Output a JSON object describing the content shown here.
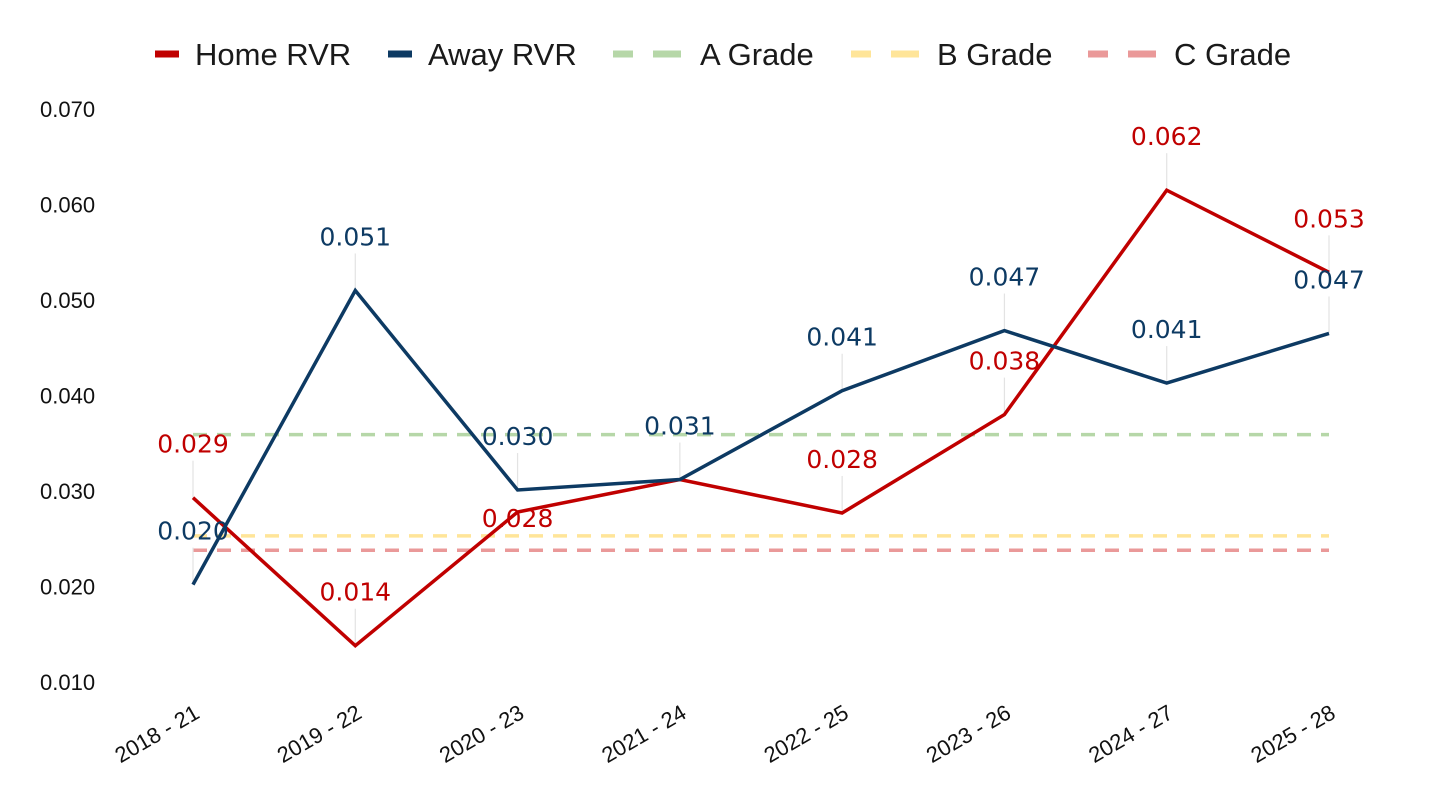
{
  "chart_data": {
    "type": "line",
    "title": "",
    "xlabel": "",
    "ylabel": "",
    "categories": [
      "2018 - 21",
      "2019 - 22",
      "2020 - 23",
      "2021 - 24",
      "2022 - 25",
      "2023 - 26",
      "2024 - 27",
      "2025 - 28"
    ],
    "ylim": [
      0.01,
      0.07
    ],
    "yticks": [
      "0.010",
      "0.020",
      "0.030",
      "0.040",
      "0.050",
      "0.060",
      "0.070"
    ],
    "grid": false,
    "legend_position": "top",
    "series": [
      {
        "name": "Home RVR",
        "key": "home",
        "color": "#c00000",
        "values": [
          0.0293,
          0.0138,
          0.0278,
          0.0312,
          0.0277,
          0.038,
          0.0615,
          0.0529
        ],
        "labels": [
          "0.029",
          "0.014",
          "0.028",
          "",
          "0.028",
          "0.038",
          "0.062",
          "0.053"
        ]
      },
      {
        "name": "Away RVR",
        "key": "away",
        "color": "#0d3a63",
        "values": [
          0.0202,
          0.051,
          0.0301,
          0.0312,
          0.0405,
          0.0468,
          0.0413,
          0.0465
        ],
        "labels": [
          "0.020",
          "0.051",
          "0.030",
          "0.031",
          "0.041",
          "0.047",
          "0.041",
          "0.047"
        ]
      }
    ],
    "reference_lines": [
      {
        "name": "A Grade",
        "key": "a-grade",
        "value": 0.0359,
        "color": "#b6d7a8"
      },
      {
        "name": "B Grade",
        "key": "b-grade",
        "value": 0.0253,
        "color": "#ffe599"
      },
      {
        "name": "C Grade",
        "key": "c-grade",
        "value": 0.0238,
        "color": "#ea9999"
      }
    ]
  }
}
